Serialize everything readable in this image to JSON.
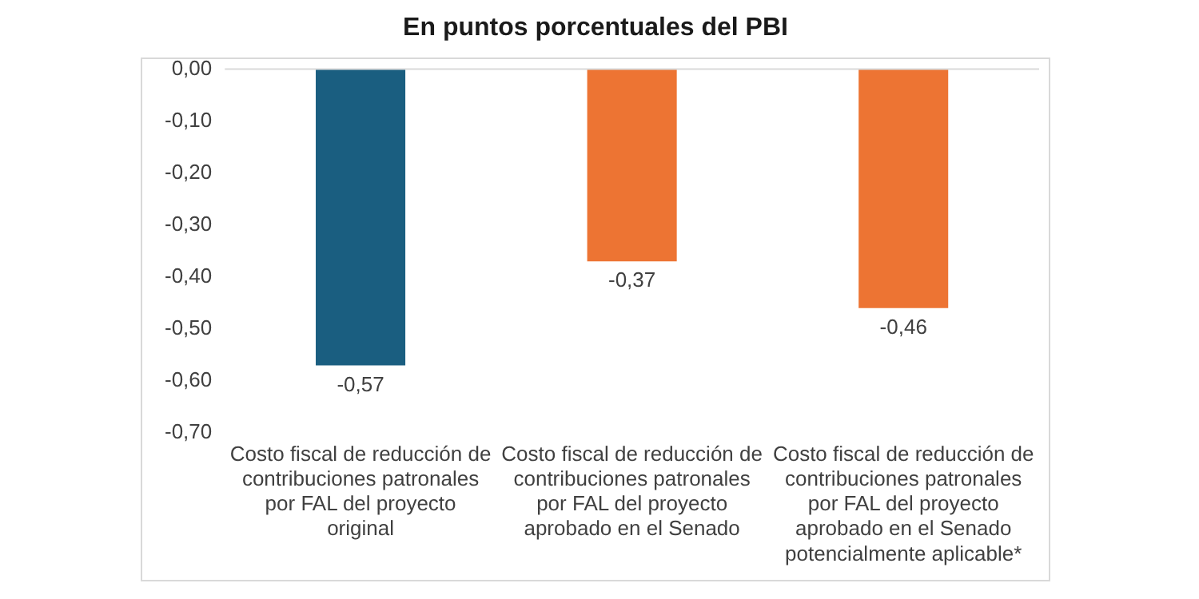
{
  "chart_data": {
    "type": "bar",
    "title": "En puntos porcentuales del PBI",
    "categories": [
      "Costo fiscal de reducción de contribuciones patronales por FAL del proyecto original",
      "Costo fiscal de reducción de contribuciones patronales por FAL del proyecto aprobado en el Senado",
      "Costo fiscal de reducción de contribuciones patronales por FAL del proyecto aprobado en el Senado potencialmente aplicable*"
    ],
    "values": [
      -0.57,
      -0.37,
      -0.46
    ],
    "colors": [
      "#1a5e80",
      "#ed7433",
      "#ed7433"
    ],
    "value_labels": [
      "-0,57",
      "-0,37",
      "-0,46"
    ],
    "ylim": [
      -0.7,
      0
    ],
    "yticks": [
      {
        "value": 0,
        "label": "0,00"
      },
      {
        "value": -0.1,
        "label": "-0,10"
      },
      {
        "value": -0.2,
        "label": "-0,20"
      },
      {
        "value": -0.3,
        "label": "-0,30"
      },
      {
        "value": -0.4,
        "label": "-0,40"
      },
      {
        "value": -0.5,
        "label": "-0,50"
      },
      {
        "value": -0.6,
        "label": "-0,60"
      },
      {
        "value": -0.7,
        "label": "-0,70"
      }
    ],
    "grid": false,
    "legend": false
  }
}
